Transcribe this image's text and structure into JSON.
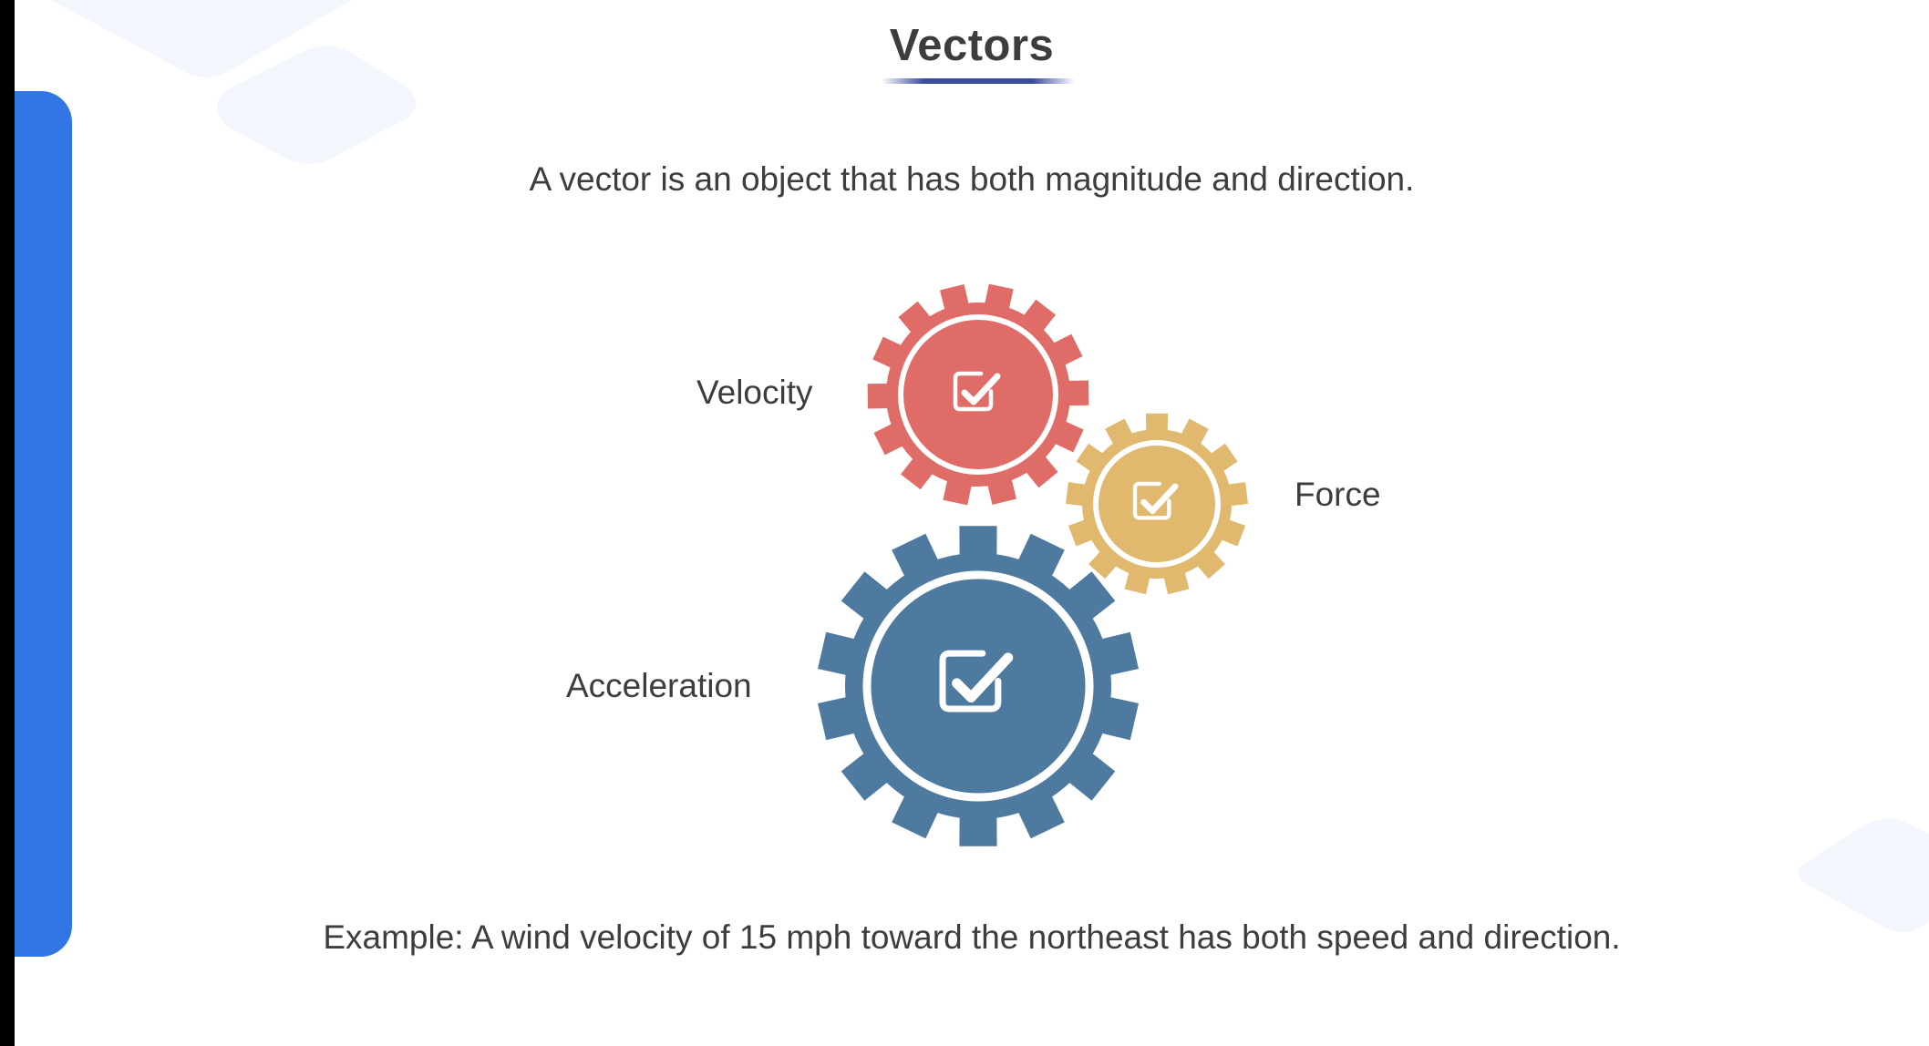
{
  "slide": {
    "title": "Vectors",
    "intro": "A vector is an object that has both magnitude and direction.",
    "example": "Example: A wind velocity of 15 mph toward the northeast has both speed and direction."
  },
  "gears": [
    {
      "label": "Velocity",
      "color": "#e06c67",
      "icon": "checkbox-check-icon"
    },
    {
      "label": "Force",
      "color": "#e0b96e",
      "icon": "checkbox-check-icon"
    },
    {
      "label": "Acceleration",
      "color": "#4f7aa0",
      "icon": "checkbox-check-icon"
    }
  ],
  "colors": {
    "accent_bar": "#3276e6",
    "title_underline": "#3a4ba0",
    "text": "#3d3d3d"
  }
}
